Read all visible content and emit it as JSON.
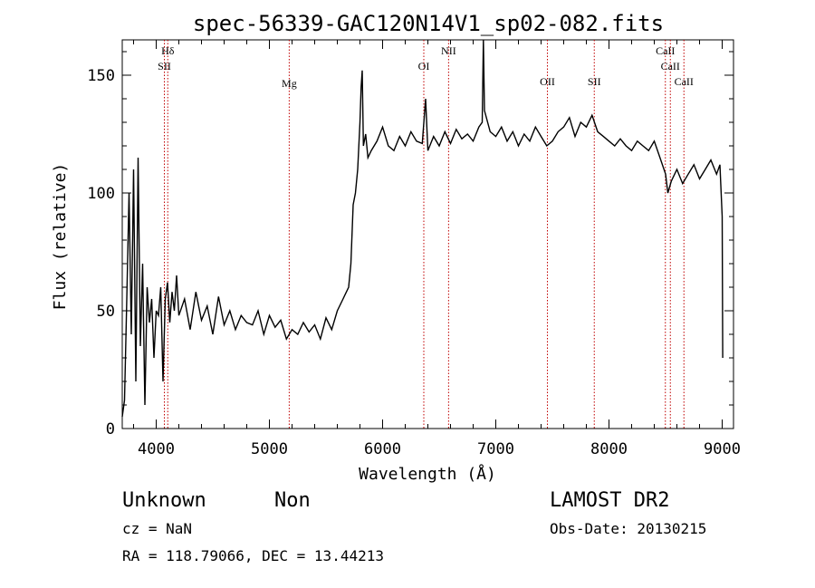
{
  "chart_data": {
    "type": "line",
    "title": "spec-56339-GAC120N14V1_sp02-082.fits",
    "xlabel": "Wavelength (Å)",
    "ylabel": "Flux (relative)",
    "xlim": [
      3700,
      9100
    ],
    "ylim": [
      0,
      165
    ],
    "xticks": [
      4000,
      5000,
      6000,
      7000,
      8000,
      9000
    ],
    "yticks": [
      0,
      50,
      100,
      150
    ],
    "grid": false,
    "series": [
      {
        "x": [
          3700,
          3720,
          3740,
          3760,
          3780,
          3800,
          3820,
          3840,
          3860,
          3880,
          3900,
          3920,
          3940,
          3960,
          3980,
          4000,
          4020,
          4040,
          4060,
          4080,
          4100,
          4120,
          4140,
          4160,
          4180,
          4200,
          4250,
          4300,
          4350,
          4400,
          4450,
          4500,
          4550,
          4600,
          4650,
          4700,
          4750,
          4800,
          4850,
          4900,
          4950,
          5000,
          5050,
          5100,
          5150,
          5200,
          5250,
          5300,
          5350,
          5400,
          5450,
          5500,
          5550,
          5600,
          5650,
          5700,
          5720,
          5740,
          5760,
          5780,
          5800,
          5810,
          5820,
          5830,
          5850,
          5870,
          5900,
          5950,
          6000,
          6050,
          6100,
          6150,
          6200,
          6250,
          6300,
          6350,
          6380,
          6400,
          6450,
          6500,
          6550,
          6600,
          6650,
          6700,
          6750,
          6800,
          6850,
          6880,
          6890,
          6900,
          6950,
          7000,
          7050,
          7100,
          7150,
          7200,
          7250,
          7300,
          7350,
          7400,
          7450,
          7500,
          7550,
          7600,
          7650,
          7700,
          7750,
          7800,
          7850,
          7900,
          7950,
          8000,
          8050,
          8100,
          8150,
          8200,
          8250,
          8300,
          8350,
          8400,
          8450,
          8500,
          8520,
          8550,
          8600,
          8650,
          8700,
          8750,
          8800,
          8850,
          8900,
          8950,
          8980,
          9000,
          9005
        ],
        "y": [
          5,
          12,
          55,
          100,
          40,
          110,
          20,
          115,
          35,
          70,
          10,
          60,
          45,
          55,
          30,
          50,
          48,
          60,
          20,
          55,
          62,
          45,
          58,
          50,
          65,
          48,
          55,
          42,
          58,
          46,
          52,
          40,
          56,
          44,
          50,
          42,
          48,
          45,
          44,
          50,
          40,
          48,
          43,
          46,
          38,
          42,
          40,
          45,
          41,
          44,
          38,
          47,
          42,
          50,
          55,
          60,
          70,
          95,
          100,
          110,
          130,
          145,
          152,
          120,
          125,
          115,
          118,
          122,
          128,
          120,
          118,
          124,
          120,
          126,
          122,
          121,
          140,
          118,
          124,
          120,
          126,
          121,
          127,
          123,
          125,
          122,
          128,
          130,
          165,
          135,
          126,
          124,
          128,
          122,
          126,
          120,
          125,
          122,
          128,
          124,
          120,
          122,
          126,
          128,
          132,
          124,
          130,
          128,
          133,
          126,
          124,
          122,
          120,
          123,
          120,
          118,
          122,
          120,
          118,
          122,
          115,
          108,
          100,
          105,
          110,
          104,
          108,
          112,
          106,
          110,
          114,
          108,
          112,
          90,
          30
        ]
      }
    ],
    "lines": [
      {
        "x": 4102,
        "label": "Hδ"
      },
      {
        "x": 4072,
        "label": "SII"
      },
      {
        "x": 5175,
        "label": "Mg"
      },
      {
        "x": 6364,
        "label": "OI"
      },
      {
        "x": 6583,
        "label": "NII"
      },
      {
        "x": 7456,
        "label": "OII"
      },
      {
        "x": 7870,
        "label": "SII"
      },
      {
        "x": 8498,
        "label": "CaII"
      },
      {
        "x": 8542,
        "label": "CaII"
      },
      {
        "x": 8662,
        "label": "CaII"
      }
    ]
  },
  "info": {
    "class_label": "Unknown",
    "subclass_label": "Non",
    "cz_text": "cz = NaN",
    "coords_text": "RA = 118.79066, DEC =  13.44213",
    "survey": "LAMOST DR2",
    "obs_date": "Obs-Date: 20130215"
  }
}
